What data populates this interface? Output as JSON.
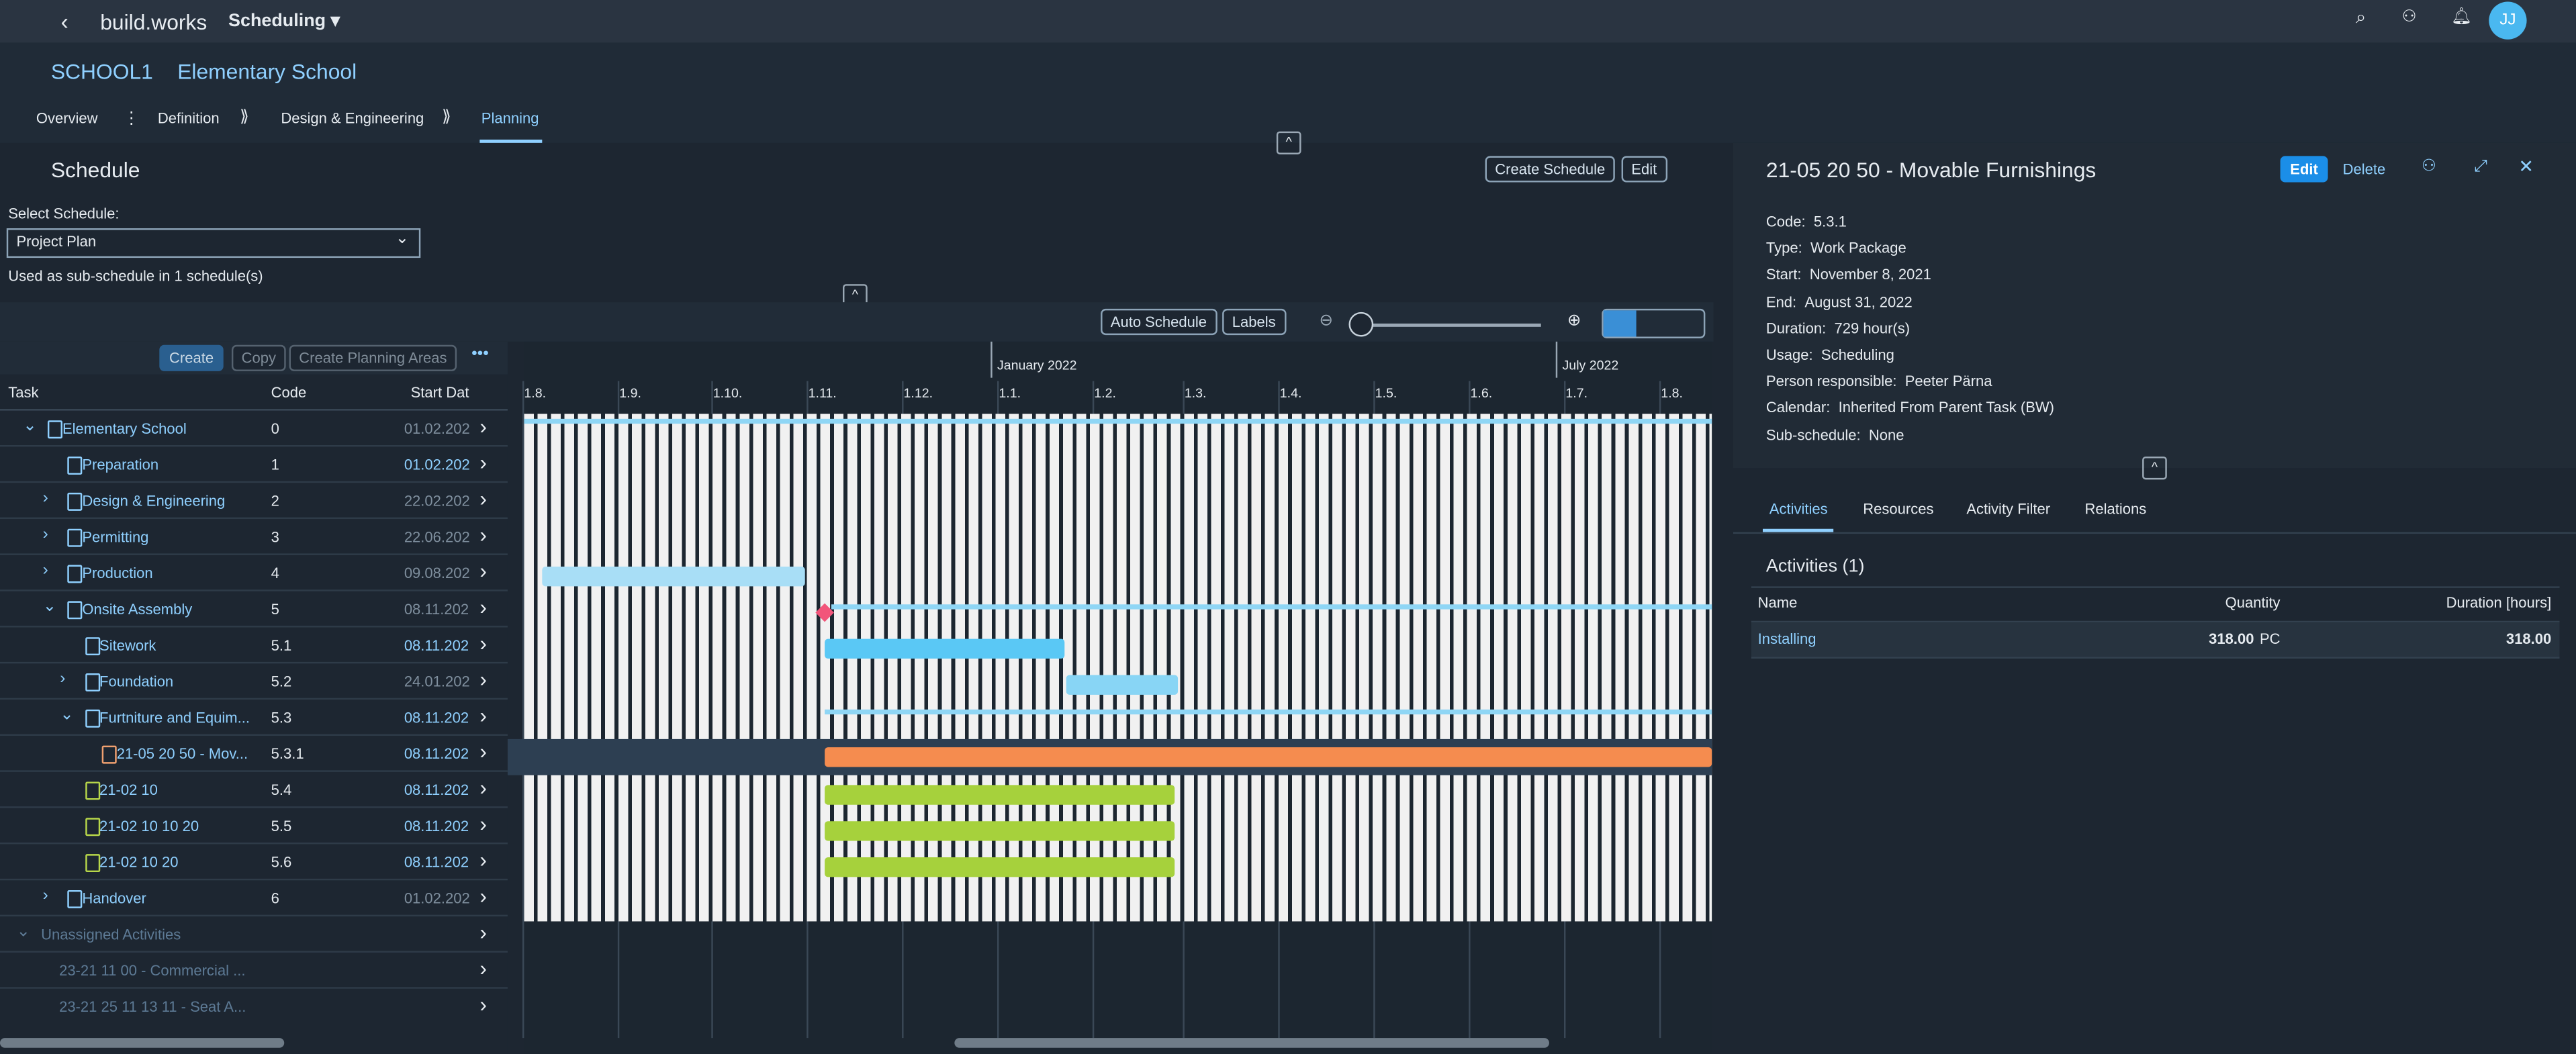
{
  "header": {
    "brand": "build.works",
    "app": "Scheduling",
    "avatar": "JJ"
  },
  "project": {
    "code": "SCHOOL1",
    "name": "Elementary School"
  },
  "tabs": [
    "Overview",
    "Definition",
    "Design & Engineering",
    "Planning"
  ],
  "schedule": {
    "title": "Schedule",
    "create": "Create Schedule",
    "edit": "Edit",
    "select_label": "Select Schedule:",
    "selected": "Project Plan",
    "note": "Used as sub-schedule in 1 schedule(s)"
  },
  "toolbar": {
    "auto": "Auto Schedule",
    "labels": "Labels",
    "create": "Create",
    "copy": "Copy",
    "areas": "Create Planning Areas"
  },
  "table": {
    "columns": [
      "Task",
      "Code",
      "Start Dat"
    ],
    "rows": [
      [
        "Elementary School",
        "0",
        "01.02.202"
      ],
      [
        "Preparation",
        "1",
        "01.02.202"
      ],
      [
        "Design & Engineering",
        "2",
        "22.02.202"
      ],
      [
        "Permitting",
        "3",
        "22.06.202"
      ],
      [
        "Production",
        "4",
        "09.08.202"
      ],
      [
        "Onsite Assembly",
        "5",
        "08.11.202"
      ],
      [
        "Sitework",
        "5.1",
        "08.11.202"
      ],
      [
        "Foundation",
        "5.2",
        "24.01.202"
      ],
      [
        "Furtniture and Equim...",
        "5.3",
        "08.11.202"
      ],
      [
        "21-05 20 50 - Mov...",
        "5.3.1",
        "08.11.202"
      ],
      [
        "21-02 10",
        "5.4",
        "08.11.202"
      ],
      [
        "21-02 10 10 20",
        "5.5",
        "08.11.202"
      ],
      [
        "21-02 10 20",
        "5.6",
        "08.11.202"
      ],
      [
        "Handover",
        "6",
        "01.02.202"
      ]
    ],
    "unassigned": {
      "title": "Unassigned Activities",
      "items": [
        "23-21 11 00 - Commercial ...",
        "23-21 25 11 13 11 - Seat A..."
      ]
    }
  },
  "timeline": {
    "years": [
      "January 2022",
      "July 2022"
    ],
    "months": [
      "1.8.",
      "1.9.",
      "1.10.",
      "1.11.",
      "1.12.",
      "1.1.",
      "1.2.",
      "1.3.",
      "1.4.",
      "1.5.",
      "1.6.",
      "1.7.",
      "1.8."
    ]
  },
  "detail": {
    "title": "21-05 20 50 - Movable Furnishings",
    "edit": "Edit",
    "delete": "Delete",
    "fields": [
      {
        "label": "Code:",
        "value": "5.3.1"
      },
      {
        "label": "Type:",
        "value": "Work Package"
      },
      {
        "label": "Start:",
        "value": "November 8, 2021"
      },
      {
        "label": "End:",
        "value": "August 31, 2022"
      },
      {
        "label": "Duration:",
        "value": "729 hour(s)"
      },
      {
        "label": "Usage:",
        "value": "Scheduling"
      },
      {
        "label": "Person responsible:",
        "value": "Peeter Pärna"
      },
      {
        "label": "Calendar:",
        "value": "Inherited From Parent Task (BW)"
      },
      {
        "label": "Sub-schedule:",
        "value": "None"
      }
    ],
    "tabs": [
      "Activities",
      "Resources",
      "Activity Filter",
      "Relations"
    ],
    "activities": {
      "title": "Activities (1)",
      "columns": [
        "Name",
        "Quantity",
        "Duration [hours]"
      ],
      "rows": [
        {
          "name": "Installing",
          "quantity": "318.00",
          "unit": "PC",
          "duration": "318.00"
        }
      ]
    }
  }
}
